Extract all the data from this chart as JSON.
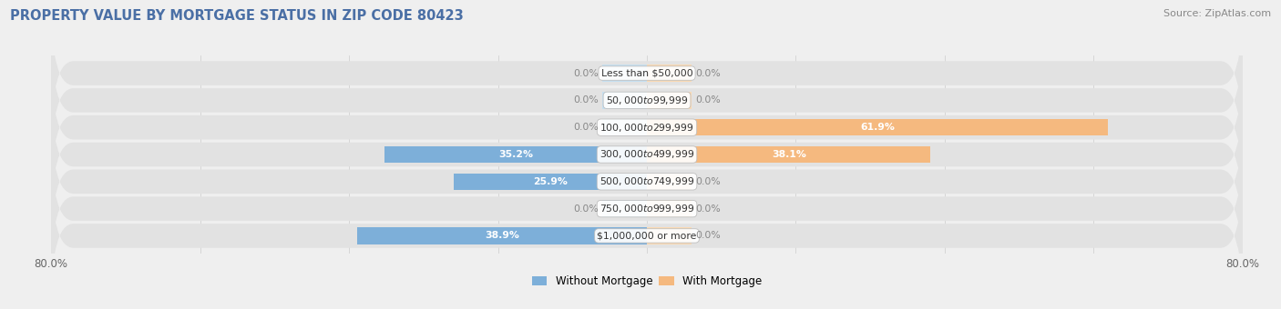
{
  "title": "PROPERTY VALUE BY MORTGAGE STATUS IN ZIP CODE 80423",
  "source_text": "Source: ZipAtlas.com",
  "categories": [
    "Less than $50,000",
    "$50,000 to $99,999",
    "$100,000 to $299,999",
    "$300,000 to $499,999",
    "$500,000 to $749,999",
    "$750,000 to $999,999",
    "$1,000,000 or more"
  ],
  "without_mortgage": [
    0.0,
    0.0,
    0.0,
    35.2,
    25.9,
    0.0,
    38.9
  ],
  "with_mortgage": [
    0.0,
    0.0,
    61.9,
    38.1,
    0.0,
    0.0,
    0.0
  ],
  "xlim": [
    -80,
    80
  ],
  "color_without": "#7dafd9",
  "color_with": "#f5b97f",
  "color_without_faint": "#c5dff0",
  "color_with_faint": "#fad9b3",
  "bg_color": "#efefef",
  "row_bg_color": "#e2e2e2",
  "title_color": "#4a6fa5",
  "source_color": "#888888",
  "figsize": [
    14.06,
    3.4
  ],
  "dpi": 100
}
